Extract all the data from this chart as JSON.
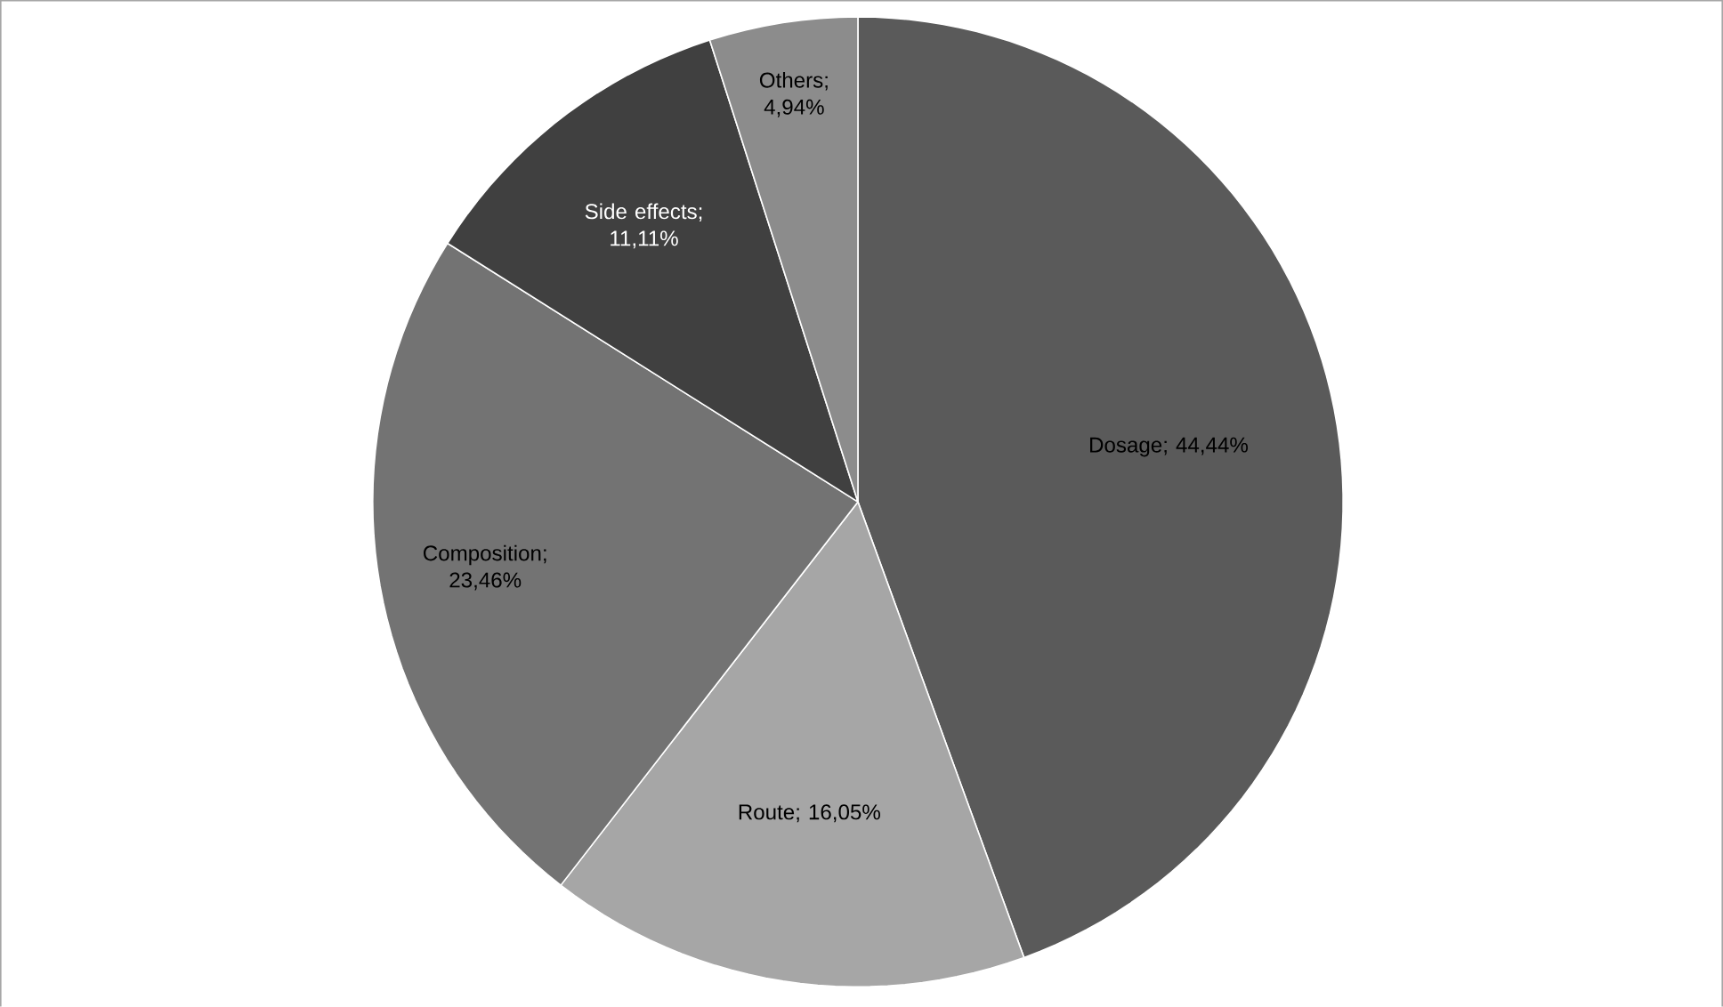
{
  "chart_data": {
    "type": "pie",
    "categories": [
      "Dosage",
      "Route",
      "Composition",
      "Side effects",
      "Others"
    ],
    "values": [
      44.44,
      16.05,
      23.46,
      11.11,
      4.94
    ],
    "value_labels": [
      "; 44,44%",
      "; 16,05%",
      "; 23,46%",
      "; 11,11%",
      "; 4,94%"
    ],
    "colors": [
      "#5a5a5a",
      "#a6a6a6",
      "#737373",
      "#404040",
      "#8c8c8c"
    ],
    "legend": false
  }
}
